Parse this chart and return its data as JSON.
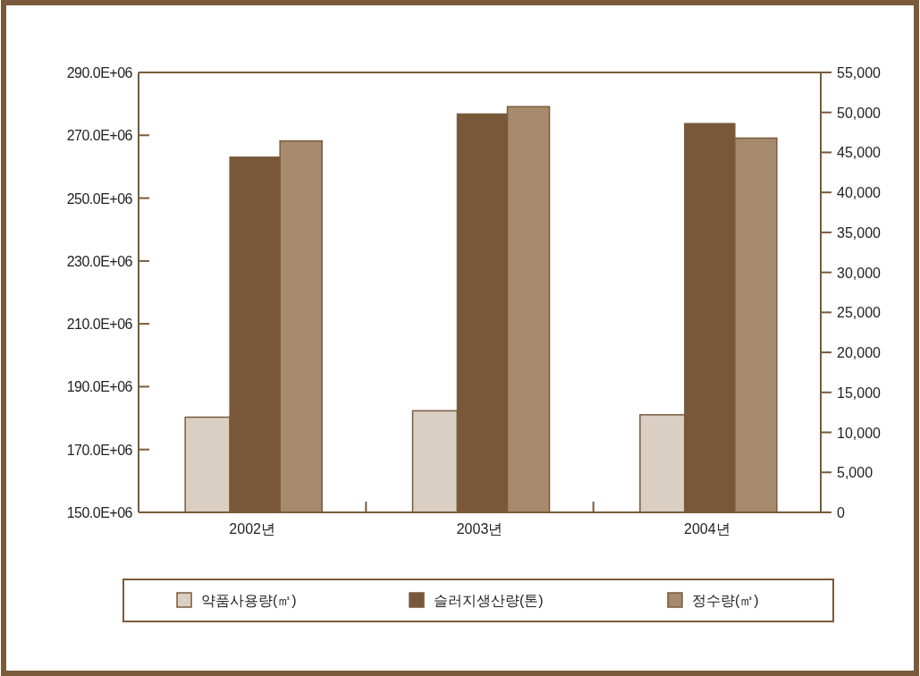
{
  "chart_data": {
    "type": "bar",
    "categories": [
      "2002년",
      "2003년",
      "2004년"
    ],
    "series": [
      {
        "name": "약품사용량(㎥)",
        "color": "#d9cfc3",
        "axis": "y2",
        "values": [
          11900,
          12700,
          12200
        ]
      },
      {
        "name": "슬러지생산량(톤)",
        "color": "#785838",
        "axis": "y2",
        "values": [
          44400,
          49800,
          48600
        ]
      },
      {
        "name": "정수량(㎥)",
        "color": "#a68a6e",
        "values": [
          268200000,
          279100000,
          269100000
        ]
      }
    ],
    "ylim": [
      150000000,
      290000000
    ],
    "yticks": [
      {
        "value": 150000000,
        "label": "150.0E+06"
      },
      {
        "value": 170000000,
        "label": "170.0E+06"
      },
      {
        "value": 190000000,
        "label": "190.0E+06"
      },
      {
        "value": 210000000,
        "label": "210.0E+06"
      },
      {
        "value": 230000000,
        "label": "230.0E+06"
      },
      {
        "value": 250000000,
        "label": "250.0E+06"
      },
      {
        "value": 270000000,
        "label": "270.0E+06"
      },
      {
        "value": 290000000,
        "label": "290.0E+06"
      }
    ],
    "y2lim": [
      0,
      55000
    ],
    "y2ticks": [
      0,
      {
        "value": 5000,
        "label": "5,000"
      },
      {
        "value": 10000,
        "label": "10,000"
      },
      {
        "value": 15000,
        "label": "15,000"
      },
      {
        "value": 20000,
        "label": "20,000"
      },
      {
        "value": 25000,
        "label": "25,000"
      },
      {
        "value": 30000,
        "label": "30,000"
      },
      {
        "value": 35000,
        "label": "35,000"
      },
      {
        "value": 40000,
        "label": "40,000"
      },
      {
        "value": 45000,
        "label": "45,000"
      },
      {
        "value": 50000,
        "label": "50,000"
      },
      {
        "value": 55000,
        "label": "55,000"
      }
    ],
    "legend": "bottom"
  }
}
